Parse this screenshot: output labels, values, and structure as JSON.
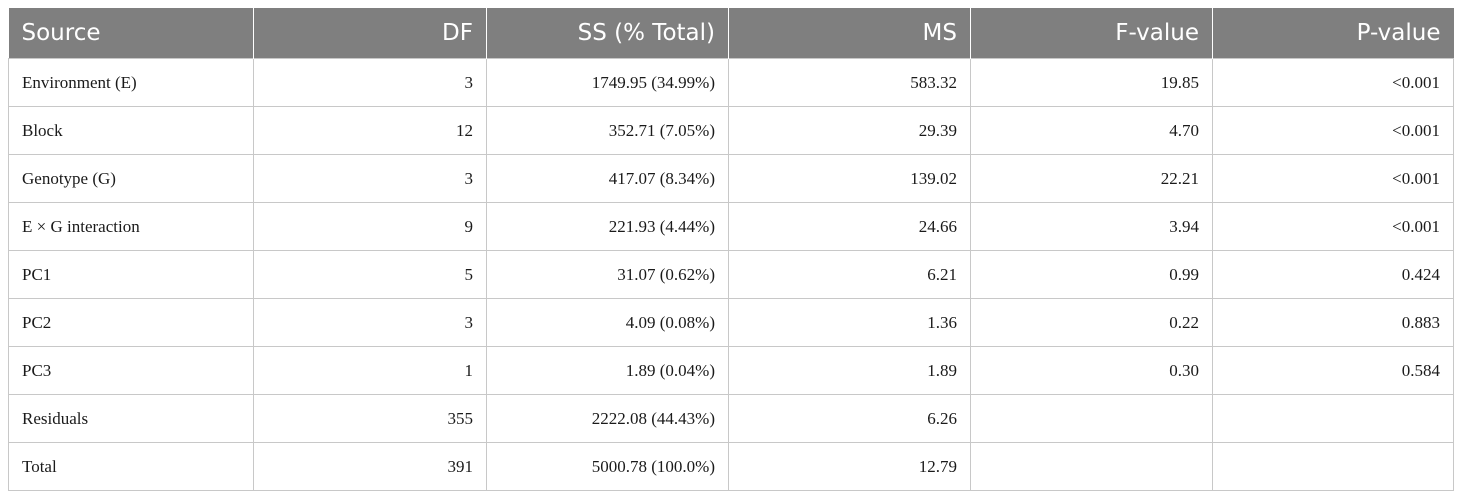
{
  "table": {
    "headers": [
      "Source",
      "DF",
      "SS (% Total)",
      "MS",
      "F-value",
      "P-value"
    ],
    "rows": [
      [
        "Environment (E)",
        "3",
        "1749.95 (34.99%)",
        "583.32",
        "19.85",
        "<0.001"
      ],
      [
        "Block",
        "12",
        "352.71 (7.05%)",
        "29.39",
        "4.70",
        "<0.001"
      ],
      [
        "Genotype (G)",
        "3",
        "417.07 (8.34%)",
        "139.02",
        "22.21",
        "<0.001"
      ],
      [
        "E × G interaction",
        "9",
        "221.93 (4.44%)",
        "24.66",
        "3.94",
        "<0.001"
      ],
      [
        "PC1",
        "5",
        "31.07 (0.62%)",
        "6.21",
        "0.99",
        "0.424"
      ],
      [
        "PC2",
        "3",
        "4.09 (0.08%)",
        "1.36",
        "0.22",
        "0.883"
      ],
      [
        "PC3",
        "1",
        "1.89 (0.04%)",
        "1.89",
        "0.30",
        "0.584"
      ],
      [
        "Residuals",
        "355",
        "2222.08 (44.43%)",
        "6.26",
        "",
        ""
      ],
      [
        "Total",
        "391",
        "5000.78 (100.0%)",
        "12.79",
        "",
        ""
      ]
    ]
  },
  "colors": {
    "header_bg": "#7f7f7f",
    "header_text": "#ffffff",
    "grid": "#c8c8c8"
  }
}
